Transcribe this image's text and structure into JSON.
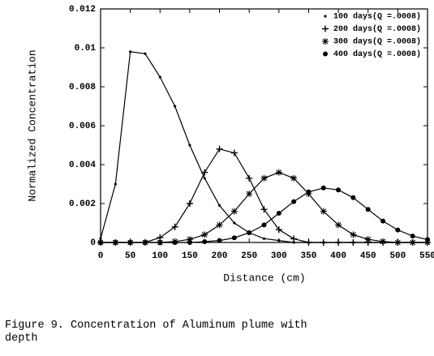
{
  "chart_data": {
    "type": "line",
    "x_label": "Distance (cm)",
    "y_label": "Normalized Concentration",
    "x": [
      0,
      25,
      50,
      75,
      100,
      125,
      150,
      175,
      200,
      225,
      250,
      275,
      300,
      325,
      350,
      375,
      400,
      425,
      450,
      475,
      500,
      525,
      550
    ],
    "series": [
      {
        "name": "100 days(Q =.0008)",
        "color": "#000000",
        "marker": "dot",
        "values": [
          0.0002,
          0.003,
          0.0098,
          0.0097,
          0.0085,
          0.007,
          0.005,
          0.0033,
          0.0019,
          0.001,
          0.0005,
          0.0002,
          0.0001,
          0,
          0,
          0,
          0,
          0,
          0,
          0,
          0,
          0,
          0
        ]
      },
      {
        "name": "200 days(Q =.0008)",
        "color": "#000000",
        "marker": "plus",
        "values": [
          0,
          0,
          0,
          0,
          0.00025,
          0.0008,
          0.002,
          0.0036,
          0.0048,
          0.0046,
          0.0033,
          0.0017,
          0.00066,
          0.00019,
          0,
          0,
          0,
          0,
          0,
          0,
          0,
          0,
          0
        ]
      },
      {
        "name": "300 days(Q =.0008)",
        "color": "#000000",
        "marker": "star",
        "values": [
          0,
          0,
          0,
          0,
          0,
          5e-05,
          0.00016,
          0.0004,
          0.0009,
          0.0016,
          0.0025,
          0.0033,
          0.0036,
          0.0033,
          0.0025,
          0.0016,
          0.0009,
          0.0004,
          0.00016,
          5e-05,
          0,
          0,
          0
        ]
      },
      {
        "name": "400 days(Q =.0008)",
        "color": "#000000",
        "marker": "circle",
        "values": [
          0,
          0,
          0,
          0,
          0,
          0,
          0,
          4e-05,
          0.0001,
          0.00024,
          0.0005,
          0.0009,
          0.0015,
          0.0021,
          0.0026,
          0.0028,
          0.0027,
          0.0023,
          0.0017,
          0.0011,
          0.00064,
          0.00033,
          0.00015
        ]
      }
    ],
    "xlim": [
      0,
      550
    ],
    "xticks": [
      0,
      50,
      100,
      150,
      200,
      250,
      300,
      350,
      400,
      450,
      500,
      550
    ],
    "ylim": [
      0,
      0.012
    ],
    "yticks": [
      0,
      0.002,
      0.004,
      0.006,
      0.008,
      0.01,
      0.012
    ],
    "legend": "top-right",
    "grid": false
  },
  "caption": "Figure 9. Concentration of Aluminum plume with depth"
}
